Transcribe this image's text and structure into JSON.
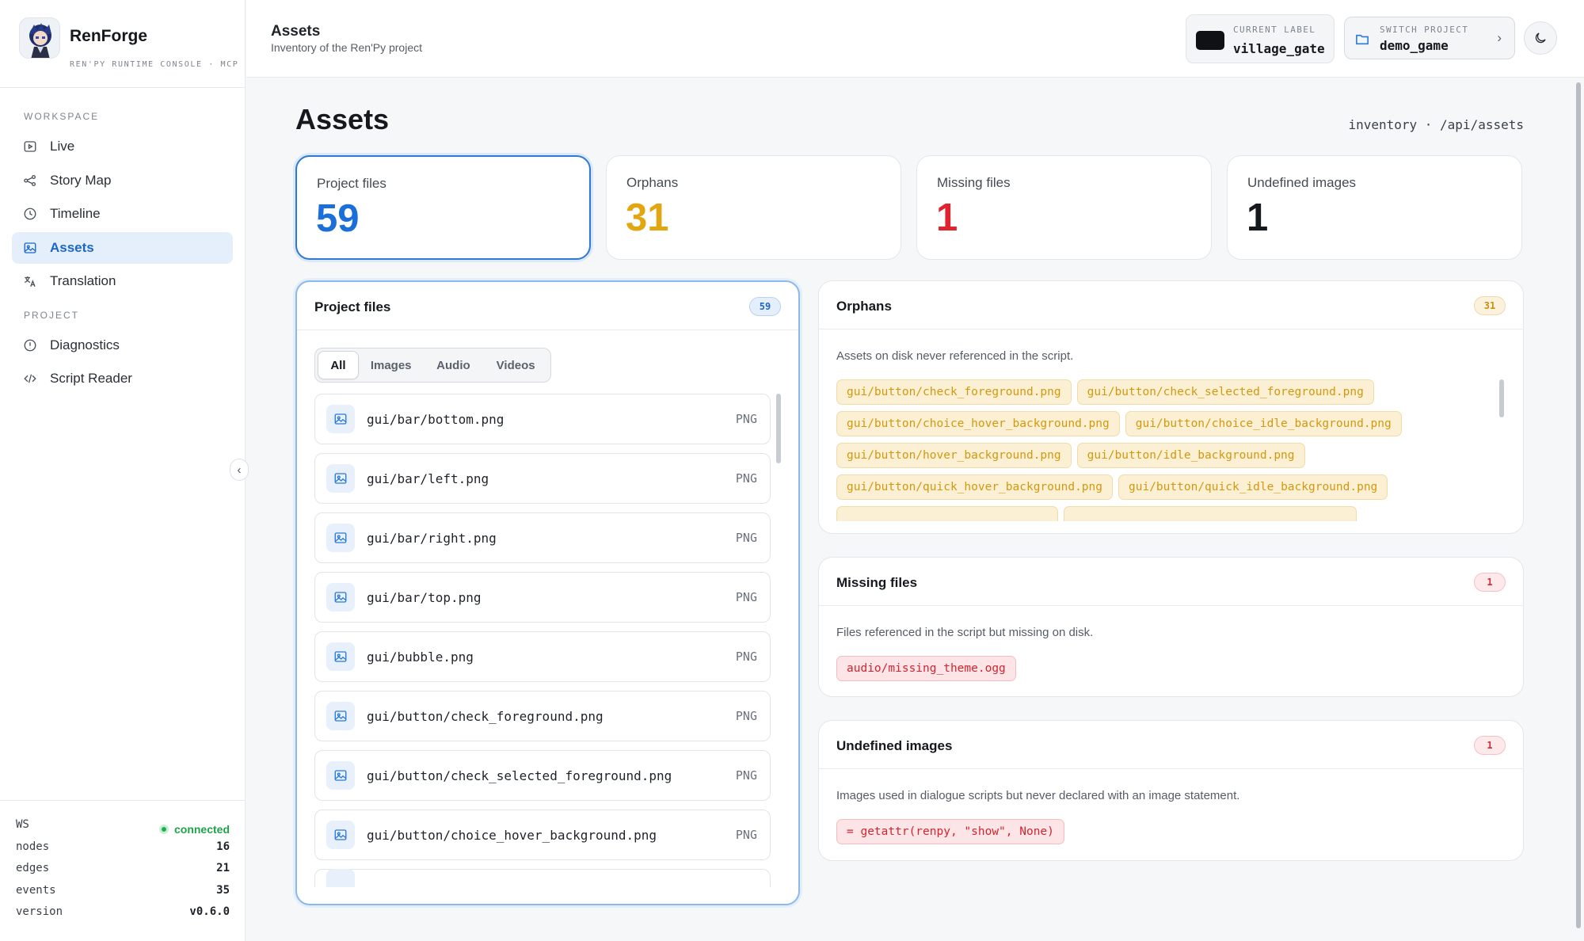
{
  "app": {
    "name": "RenForge",
    "subtitle": "REN'PY RUNTIME CONSOLE · MCP"
  },
  "sidebar": {
    "workspace_title": "WORKSPACE",
    "workspace_items": [
      {
        "label": "Live",
        "icon": "play-icon"
      },
      {
        "label": "Story Map",
        "icon": "share-graph-icon"
      },
      {
        "label": "Timeline",
        "icon": "clock-icon"
      },
      {
        "label": "Assets",
        "icon": "image-icon",
        "active": true
      },
      {
        "label": "Translation",
        "icon": "translate-icon"
      }
    ],
    "project_title": "PROJECT",
    "project_items": [
      {
        "label": "Diagnostics",
        "icon": "alert-circle-icon"
      },
      {
        "label": "Script Reader",
        "icon": "code-icon"
      }
    ],
    "stats": {
      "ws_label": "WS",
      "ws_value": "connected",
      "nodes_label": "nodes",
      "nodes_value": "16",
      "edges_label": "edges",
      "edges_value": "21",
      "events_label": "events",
      "events_value": "35",
      "version_label": "version",
      "version_value": "v0.6.0"
    }
  },
  "header": {
    "title": "Assets",
    "subtitle": "Inventory of the Ren'Py project",
    "current_label_caption": "CURRENT LABEL",
    "current_label_value": "village_gate",
    "switch_project_caption": "SWITCH PROJECT",
    "switch_project_value": "demo_game"
  },
  "main": {
    "title": "Assets",
    "endpoint": "inventory · /api/assets",
    "stats": [
      {
        "label": "Project files",
        "value": "59",
        "color": "#1a6fd8"
      },
      {
        "label": "Orphans",
        "value": "31",
        "color": "#e2a612"
      },
      {
        "label": "Missing files",
        "value": "1",
        "color": "#df2430"
      },
      {
        "label": "Undefined images",
        "value": "1",
        "color": "#15181d"
      }
    ],
    "project_files": {
      "title": "Project files",
      "count": "59",
      "tabs": [
        "All",
        "Images",
        "Audio",
        "Videos"
      ],
      "active_tab": "All",
      "files": [
        {
          "name": "gui/bar/bottom.png",
          "ext": "PNG"
        },
        {
          "name": "gui/bar/left.png",
          "ext": "PNG"
        },
        {
          "name": "gui/bar/right.png",
          "ext": "PNG"
        },
        {
          "name": "gui/bar/top.png",
          "ext": "PNG"
        },
        {
          "name": "gui/bubble.png",
          "ext": "PNG"
        },
        {
          "name": "gui/button/check_foreground.png",
          "ext": "PNG"
        },
        {
          "name": "gui/button/check_selected_foreground.png",
          "ext": "PNG"
        },
        {
          "name": "gui/button/choice_hover_background.png",
          "ext": "PNG"
        }
      ]
    },
    "orphans": {
      "title": "Orphans",
      "count": "31",
      "description": "Assets on disk never referenced in the script.",
      "items": [
        "gui/button/check_foreground.png",
        "gui/button/check_selected_foreground.png",
        "gui/button/choice_hover_background.png",
        "gui/button/choice_idle_background.png",
        "gui/button/hover_background.png",
        "gui/button/idle_background.png",
        "gui/button/quick_hover_background.png",
        "gui/button/quick_idle_background.png"
      ]
    },
    "missing": {
      "title": "Missing files",
      "count": "1",
      "description": "Files referenced in the script but missing on disk.",
      "items": [
        "audio/missing_theme.ogg"
      ]
    },
    "undefined": {
      "title": "Undefined images",
      "count": "1",
      "description": "Images used in dialogue scripts but never declared with an image statement.",
      "items": [
        "= getattr(renpy, \"show\", None)"
      ]
    }
  }
}
